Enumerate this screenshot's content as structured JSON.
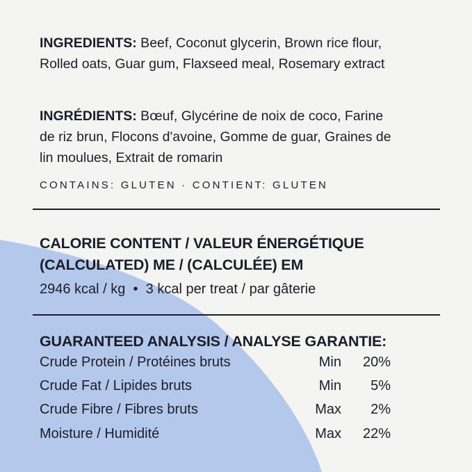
{
  "colors": {
    "background": "#f4f4f2",
    "accent_shape": "#b3c8ea",
    "text": "#1b1d2b"
  },
  "ingredients_en": {
    "label": "INGREDIENTS:",
    "text": " Beef, Coconut glycerin, Brown rice flour, Rolled oats, Guar gum, Flaxseed meal, Rosemary extract"
  },
  "ingredients_fr": {
    "label": "INGRÉDIENTS:",
    "text": " Bœuf, Glycérine de noix de coco, Farine de riz brun, Flocons d'avoine, Gomme de guar, Graines de lin moulues, Extrait de romarin"
  },
  "contains": "CONTAINS: GLUTEN · CONTIENT: GLUTEN",
  "calorie": {
    "heading_line1": "CALORIE CONTENT / VALEUR ÉNERGÉTIQUE",
    "heading_line2": "(CALCULATED) ME / (CALCULÉE) EM",
    "value": "2946 kcal / kg  •  3 kcal per treat / par gâterie"
  },
  "analysis": {
    "heading": "GUARANTEED ANALYSIS / ANALYSE GARANTIE:",
    "rows": [
      {
        "name": "Crude Protein / Protéines bruts",
        "qualifier": "Min",
        "value": "20%"
      },
      {
        "name": "Crude Fat / Lipides bruts",
        "qualifier": "Min",
        "value": "5%"
      },
      {
        "name": "Crude Fibre / Fibres bruts",
        "qualifier": "Max",
        "value": "2%"
      },
      {
        "name": "Moisture / Humidité",
        "qualifier": "Max",
        "value": "22%"
      }
    ]
  }
}
